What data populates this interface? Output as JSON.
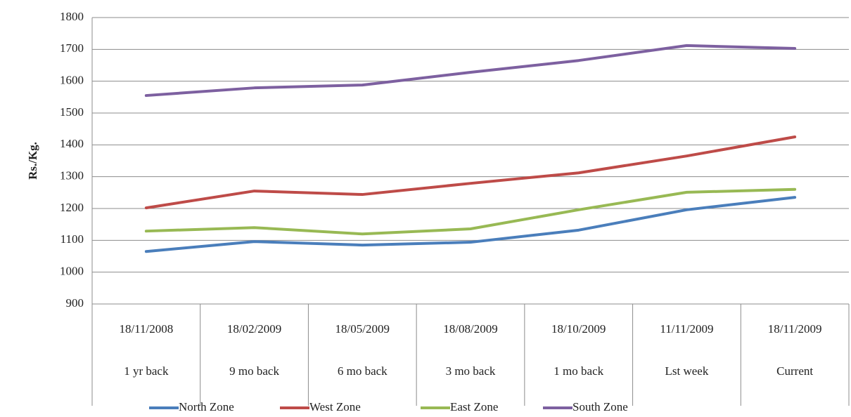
{
  "chart_data": {
    "type": "line",
    "y_label": "Rs./Kg.",
    "categories": [
      "18/11/2008",
      "18/02/2009",
      "18/05/2009",
      "18/08/2009",
      "18/10/2009",
      "11/11/2009",
      "18/11/2009"
    ],
    "category_groups": [
      "1 yr back",
      "9 mo back",
      "6 mo back",
      "3 mo back",
      "1 mo back",
      "Lst week",
      "Current"
    ],
    "series": [
      {
        "name": "North Zone",
        "color": "#4a7ebb",
        "values": [
          1065,
          1096,
          1085,
          1094,
          1132,
          1196,
          1235
        ]
      },
      {
        "name": "West Zone",
        "color": "#be4b48",
        "values": [
          1202,
          1255,
          1244,
          1279,
          1312,
          1365,
          1425
        ]
      },
      {
        "name": "East Zone",
        "color": "#98b954",
        "values": [
          1129,
          1140,
          1120,
          1136,
          1196,
          1251,
          1260
        ]
      },
      {
        "name": "South Zone",
        "color": "#7d60a0",
        "values": [
          1555,
          1579,
          1588,
          1628,
          1665,
          1712,
          1703
        ]
      }
    ],
    "ylim": [
      900,
      1800
    ],
    "yticks": [
      900,
      1000,
      1100,
      1200,
      1300,
      1400,
      1500,
      1600,
      1700,
      1800
    ],
    "grid": true,
    "legend": "bottom"
  }
}
